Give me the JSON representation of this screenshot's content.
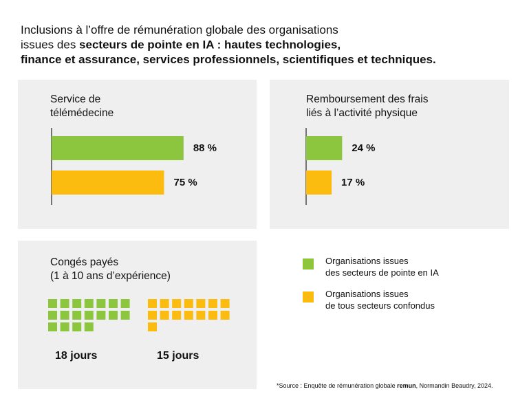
{
  "heading": {
    "lines": [
      [
        {
          "text": "Inclusions à l’offre de rémunération globale des organisations",
          "bold": false
        }
      ],
      [
        {
          "text": "issues des ",
          "bold": false
        },
        {
          "text": "secteurs de pointe en IA : hautes technologies,",
          "bold": true
        }
      ],
      [
        {
          "text": "finance et assurance, services professionnels, scientifiques et techniques.",
          "bold": true
        }
      ]
    ]
  },
  "legend": [
    {
      "name": [
        "Organisations issues",
        "des secteurs de pointe en IA"
      ],
      "color": "#8cc63f"
    },
    {
      "name": [
        "Organisations issues",
        "de tous secteurs confondus"
      ],
      "color": "#fbbc0f"
    }
  ],
  "chart_data": [
    {
      "type": "bar",
      "title": [
        "Service de",
        "télémédecine"
      ],
      "values": [
        88,
        75
      ],
      "value_labels": [
        "88 %",
        "75 %"
      ],
      "colors": [
        "#8cc63f",
        "#fbbc0f"
      ],
      "xlim": [
        0,
        100
      ]
    },
    {
      "type": "bar",
      "title": [
        "Remboursement des frais",
        "liés à l’activité physique"
      ],
      "values": [
        24,
        17
      ],
      "value_labels": [
        "24 %",
        "17 %"
      ],
      "colors": [
        "#8cc63f",
        "#fbbc0f"
      ],
      "xlim": [
        0,
        100
      ]
    },
    {
      "type": "waffle",
      "title": [
        "Congés payés",
        "(1 à 10 ans d’expérience)"
      ],
      "values": [
        18,
        15
      ],
      "value_labels": [
        "18 jours",
        "15 jours"
      ],
      "colors": [
        "#8cc63f",
        "#fbbc0f"
      ]
    }
  ],
  "source": [
    {
      "text": "*Source : Enquête de rémunération globale ",
      "bold": false
    },
    {
      "text": "remun",
      "bold": true
    },
    {
      "text": ", Normandin Beaudry, 2024.",
      "bold": false
    }
  ]
}
